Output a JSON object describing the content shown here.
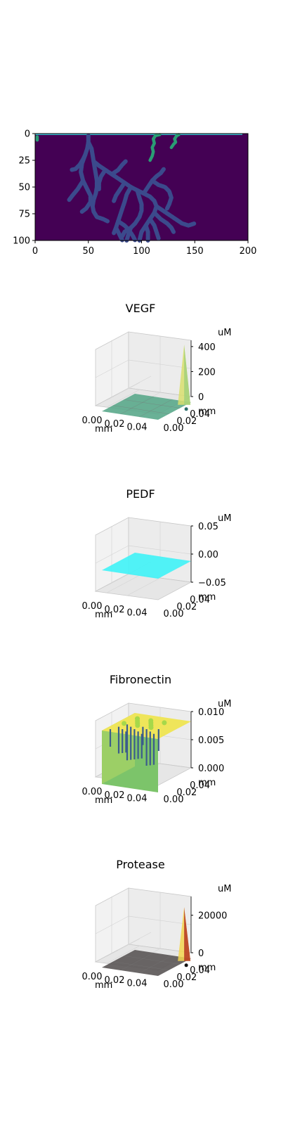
{
  "chart_data": [
    {
      "type": "heatmap",
      "title": "",
      "x_ticks": [
        "0",
        "50",
        "100",
        "150",
        "200"
      ],
      "y_ticks": [
        "0",
        "25",
        "50",
        "75",
        "100"
      ],
      "xlim": [
        0,
        200
      ],
      "ylim": [
        100,
        0
      ],
      "colormap": "viridis",
      "background": "#440154",
      "vessel_color": "#3b4a8c",
      "tip_color": "#2a9d74",
      "edge_color": "#3fbbd0",
      "vessels": [
        {
          "path": [
            [
              50,
              2
            ],
            [
              50,
              8
            ],
            [
              49,
              14
            ],
            [
              47,
              20
            ],
            [
              45,
              24
            ],
            [
              42,
              29
            ],
            [
              38,
              33
            ],
            [
              34,
              34
            ]
          ]
        },
        {
          "path": [
            [
              50,
              8
            ],
            [
              53,
              14
            ],
            [
              54,
              20
            ],
            [
              55,
              26
            ],
            [
              56,
              32
            ],
            [
              57,
              38
            ],
            [
              58,
              44
            ],
            [
              58,
              50
            ],
            [
              57,
              56
            ],
            [
              55,
              62
            ],
            [
              54,
              68
            ],
            [
              55,
              73
            ],
            [
              58,
              78
            ],
            [
              64,
              80
            ],
            [
              68,
              82
            ]
          ]
        },
        {
          "path": [
            [
              47,
              20
            ],
            [
              44,
              28
            ],
            [
              43,
              36
            ],
            [
              45,
              44
            ],
            [
              49,
              52
            ],
            [
              52,
              58
            ],
            [
              52,
              64
            ],
            [
              48,
              70
            ],
            [
              44,
              73
            ]
          ]
        },
        {
          "path": [
            [
              45,
              44
            ],
            [
              40,
              52
            ],
            [
              35,
              58
            ],
            [
              32,
              62
            ]
          ]
        },
        {
          "path": [
            [
              55,
              26
            ],
            [
              60,
              30
            ],
            [
              66,
              34
            ],
            [
              72,
              38
            ],
            [
              78,
              42
            ],
            [
              84,
              46
            ],
            [
              90,
              50
            ],
            [
              96,
              53
            ],
            [
              102,
              56
            ],
            [
              108,
              59
            ],
            [
              112,
              63
            ],
            [
              114,
              68
            ],
            [
              112,
              74
            ],
            [
              108,
              80
            ],
            [
              104,
              86
            ],
            [
              100,
              92
            ],
            [
              98,
              100
            ]
          ]
        },
        {
          "path": [
            [
              72,
              38
            ],
            [
              78,
              34
            ],
            [
              82,
              29
            ],
            [
              85,
              26
            ]
          ]
        },
        {
          "path": [
            [
              84,
              46
            ],
            [
              80,
              52
            ],
            [
              76,
              58
            ],
            [
              74,
              63
            ]
          ]
        },
        {
          "path": [
            [
              90,
              50
            ],
            [
              86,
              57
            ],
            [
              84,
              64
            ],
            [
              82,
              70
            ],
            [
              80,
              76
            ],
            [
              78,
              82
            ],
            [
              76,
              88
            ],
            [
              74,
              93
            ]
          ]
        },
        {
          "path": [
            [
              96,
              53
            ],
            [
              98,
              60
            ],
            [
              100,
              66
            ],
            [
              100,
              72
            ],
            [
              98,
              78
            ],
            [
              94,
              84
            ],
            [
              90,
              88
            ],
            [
              88,
              93
            ],
            [
              86,
              100
            ]
          ]
        },
        {
          "path": [
            [
              102,
              56
            ],
            [
              106,
              50
            ],
            [
              110,
              44
            ],
            [
              114,
              40
            ],
            [
              118,
              37
            ],
            [
              121,
              33
            ]
          ]
        },
        {
          "path": [
            [
              110,
              44
            ],
            [
              116,
              48
            ],
            [
              122,
              50
            ],
            [
              126,
              54
            ],
            [
              128,
              60
            ],
            [
              126,
              66
            ],
            [
              124,
              70
            ]
          ]
        },
        {
          "path": [
            [
              114,
              68
            ],
            [
              120,
              72
            ],
            [
              126,
              76
            ],
            [
              132,
              80
            ],
            [
              138,
              84
            ],
            [
              144,
              86
            ],
            [
              150,
              84
            ]
          ]
        },
        {
          "path": [
            [
              112,
              74
            ],
            [
              118,
              80
            ],
            [
              124,
              84
            ],
            [
              128,
              88
            ],
            [
              130,
              92
            ]
          ]
        },
        {
          "path": [
            [
              108,
              80
            ],
            [
              112,
              86
            ],
            [
              114,
              92
            ],
            [
              116,
              98
            ]
          ]
        },
        {
          "path": [
            [
              78,
              82
            ],
            [
              84,
              86
            ],
            [
              88,
              90
            ],
            [
              92,
              96
            ],
            [
              94,
              100
            ]
          ]
        },
        {
          "path": [
            [
              76,
              88
            ],
            [
              79,
              94
            ],
            [
              82,
              100
            ]
          ]
        },
        {
          "path": [
            [
              66,
              34
            ],
            [
              62,
              40
            ],
            [
              60,
              46
            ],
            [
              60,
              52
            ]
          ]
        },
        {
          "path": [
            [
              104,
              86
            ],
            [
              106,
              92
            ],
            [
              106,
              100
            ]
          ]
        },
        {
          "path": [
            [
              90,
              88
            ],
            [
              84,
              92
            ],
            [
              82,
              96
            ]
          ]
        }
      ],
      "tips": [
        {
          "path": [
            [
              108,
              25
            ],
            [
              110,
              21
            ],
            [
              111,
              17
            ],
            [
              110,
              13
            ],
            [
              112,
              9
            ],
            [
              111,
              5
            ],
            [
              113,
              2
            ],
            [
              117,
              1
            ]
          ]
        },
        {
          "path": [
            [
              128,
              13
            ],
            [
              130,
              10
            ],
            [
              132,
              8
            ],
            [
              131,
              5
            ],
            [
              133,
              2
            ],
            [
              135,
              1
            ]
          ]
        },
        {
          "path": [
            [
              2,
              3
            ],
            [
              2,
              6
            ]
          ]
        }
      ]
    },
    {
      "type": "surface3d",
      "title": "VEGF",
      "x_ticks": [
        "0.00",
        "0.02",
        "0.04"
      ],
      "y_ticks": [
        "0.00",
        "0.02",
        "0.04"
      ],
      "z_ticks": [
        "0",
        "200",
        "400"
      ],
      "xlabel": "mm",
      "ylabel": "mm",
      "zlabel": "uM",
      "zlim": [
        0,
        450
      ],
      "surface_color": "#5aa98b",
      "peak_color": "#d9df6e",
      "peaks": [
        {
          "x": 0.045,
          "y": 0.048,
          "z": 470
        }
      ]
    },
    {
      "type": "surface3d",
      "title": "PEDF",
      "x_ticks": [
        "0.00",
        "0.02",
        "0.04"
      ],
      "y_ticks": [
        "0.00",
        "0.02",
        "0.04"
      ],
      "z_ticks": [
        "0.05",
        "0.00",
        "−0.05"
      ],
      "xlabel": "mm",
      "ylabel": "mm",
      "zlabel": "uM",
      "zlim": [
        -0.05,
        0.05
      ],
      "surface_color": "#3ff3f7"
    },
    {
      "type": "surface3d",
      "title": "Fibronectin",
      "x_ticks": [
        "0.00",
        "0.02",
        "0.04"
      ],
      "y_ticks": [
        "0.00",
        "0.02",
        "0.04"
      ],
      "z_ticks": [
        "0.010",
        "0.005",
        "0.000"
      ],
      "xlabel": "mm",
      "ylabel": "mm",
      "zlabel": "uM",
      "zlim": [
        0,
        0.01
      ],
      "surface_color": "#efe55a",
      "wall_color": "#7cc46a",
      "dip_color": "#3b5c8c"
    },
    {
      "type": "surface3d",
      "title": "Protease",
      "x_ticks": [
        "0.00",
        "0.02",
        "0.04"
      ],
      "y_ticks": [
        "0.00",
        "0.02",
        "0.04"
      ],
      "z_ticks": [
        "20000",
        "0"
      ],
      "xlabel": "mm",
      "ylabel": "mm",
      "zlabel": "uM",
      "zlim": [
        0,
        30000
      ],
      "surface_color": "#5a5555",
      "peak_color": "#f3d550",
      "peaks": [
        {
          "x": 0.045,
          "y": 0.048,
          "z": 28000
        }
      ]
    }
  ]
}
